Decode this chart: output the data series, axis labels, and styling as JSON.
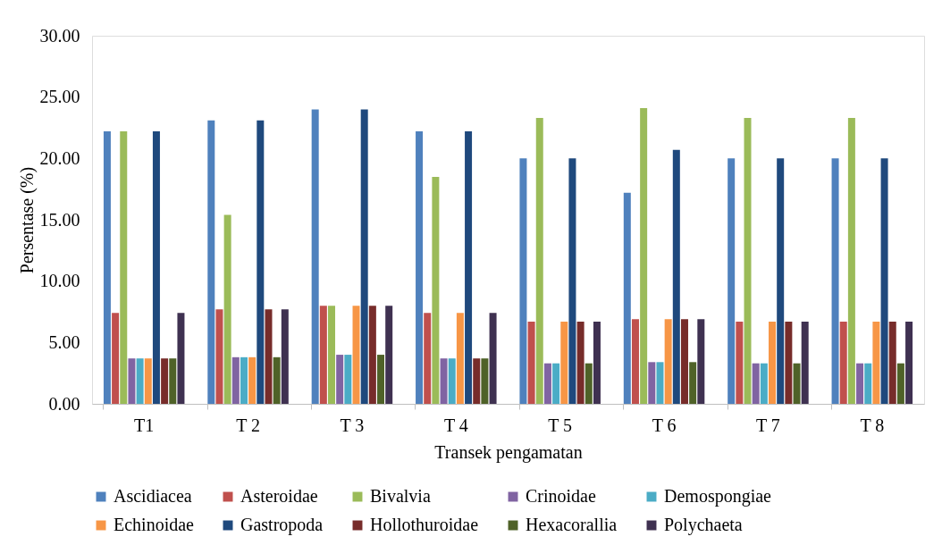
{
  "chart_data": {
    "type": "bar",
    "xlabel": "Transek pengamatan",
    "ylabel": "Persentase (%)",
    "categories": [
      "T1",
      "T 2",
      "T 3",
      "T 4",
      "T 5",
      "T 6",
      "T 7",
      "T 8"
    ],
    "ylim": [
      0,
      30
    ],
    "yticks": [
      {
        "value": 0,
        "label": "0.00"
      },
      {
        "value": 5,
        "label": "5.00"
      },
      {
        "value": 10,
        "label": "10.00"
      },
      {
        "value": 15,
        "label": "15.00"
      },
      {
        "value": 20,
        "label": "20.00"
      },
      {
        "value": 25,
        "label": "25.00"
      },
      {
        "value": 30,
        "label": "30.00"
      }
    ],
    "grid": false,
    "legend": "bottom",
    "series": [
      {
        "name": "Ascidiacea",
        "color": "#4f81bd",
        "values": [
          22.2,
          23.1,
          24,
          22.2,
          20,
          17.2,
          20,
          20
        ]
      },
      {
        "name": "Asteroidae",
        "color": "#c0504d",
        "values": [
          7.4,
          7.7,
          8,
          7.4,
          6.7,
          6.9,
          6.7,
          6.7
        ]
      },
      {
        "name": "Bivalvia",
        "color": "#9bbb59",
        "values": [
          22.2,
          15.4,
          8,
          18.5,
          23.3,
          24.1,
          23.3,
          23.3
        ]
      },
      {
        "name": "Crinoidae",
        "color": "#8064a2",
        "values": [
          3.7,
          3.8,
          4,
          3.7,
          3.3,
          3.4,
          3.3,
          3.3
        ]
      },
      {
        "name": "Demospongiae",
        "color": "#4bacc6",
        "values": [
          3.7,
          3.8,
          4,
          3.7,
          3.3,
          3.4,
          3.3,
          3.3
        ]
      },
      {
        "name": "Echinoidae",
        "color": "#f79646",
        "values": [
          3.7,
          3.8,
          8,
          7.4,
          6.7,
          6.9,
          6.7,
          6.7
        ]
      },
      {
        "name": "Gastropoda",
        "color": "#1f497d",
        "values": [
          22.2,
          23.1,
          24,
          22.2,
          20,
          20.7,
          20,
          20
        ]
      },
      {
        "name": "Hollothuroidae",
        "color": "#772c2a",
        "values": [
          3.7,
          7.7,
          8,
          3.7,
          6.7,
          6.9,
          6.7,
          6.7
        ]
      },
      {
        "name": "Hexacorallia",
        "color": "#4f6228",
        "values": [
          3.7,
          3.8,
          4,
          3.7,
          3.3,
          3.4,
          3.3,
          3.3
        ]
      },
      {
        "name": "Polychaeta",
        "color": "#3f3151",
        "values": [
          7.4,
          7.7,
          8,
          7.4,
          6.7,
          6.9,
          6.7,
          6.7
        ]
      }
    ]
  }
}
